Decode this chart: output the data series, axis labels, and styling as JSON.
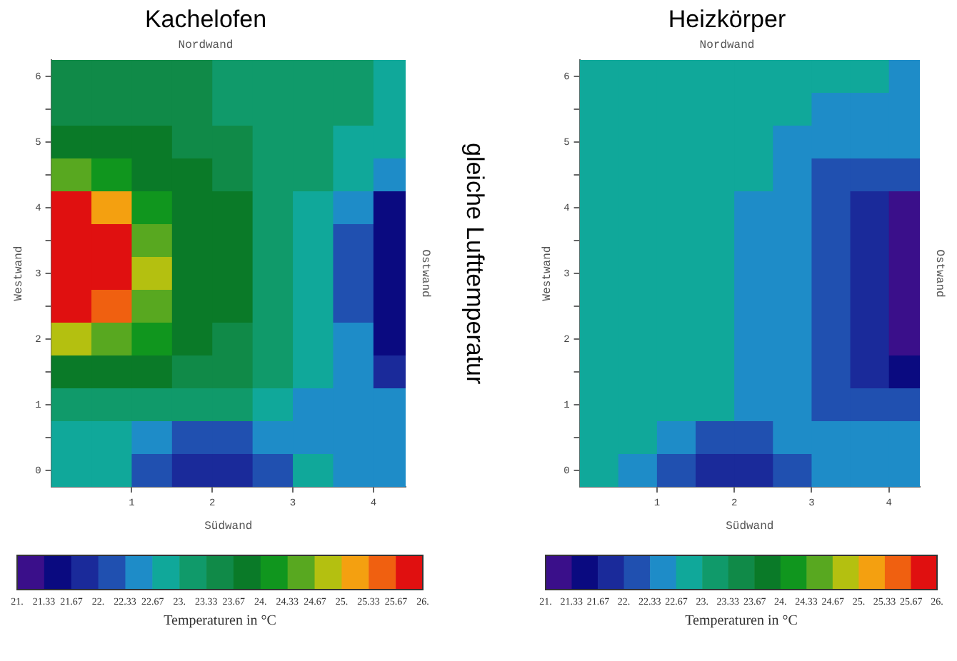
{
  "chart_data": [
    {
      "type": "heatmap",
      "title": "Kachelofen",
      "subtitle": "Nordwand",
      "xlabel": "Südwand",
      "ylabel": "Westwand",
      "y2label": "Ostwand",
      "clabel": "Temperaturen in °C",
      "annotations": [
        "gleiche Lufttemperatur"
      ],
      "x": [
        0.25,
        0.75,
        1.25,
        1.75,
        2.25,
        2.75,
        3.25,
        3.75,
        4.25
      ],
      "y_categories": [
        "6",
        null,
        "5",
        null,
        "4",
        null,
        "3",
        null,
        "2",
        null,
        "1",
        null,
        "0"
      ],
      "cells": [
        [
          23.5,
          23.5,
          23.5,
          23.5,
          23.17,
          23.17,
          23.17,
          23.17,
          22.83
        ],
        [
          23.5,
          23.5,
          23.5,
          23.5,
          23.17,
          23.17,
          23.17,
          23.17,
          22.83
        ],
        [
          23.83,
          23.83,
          23.83,
          23.5,
          23.5,
          23.17,
          23.17,
          22.83,
          22.83
        ],
        [
          24.5,
          24.17,
          23.83,
          23.83,
          23.5,
          23.17,
          23.17,
          22.83,
          22.5
        ],
        [
          25.83,
          25.17,
          24.17,
          23.83,
          23.83,
          23.17,
          22.83,
          22.5,
          21.5
        ],
        [
          25.83,
          25.83,
          24.5,
          23.83,
          23.83,
          23.17,
          22.83,
          22.17,
          21.5
        ],
        [
          25.83,
          25.83,
          24.83,
          23.83,
          23.83,
          23.17,
          22.83,
          22.17,
          21.5
        ],
        [
          25.83,
          25.5,
          24.5,
          23.83,
          23.83,
          23.17,
          22.83,
          22.17,
          21.5
        ],
        [
          24.83,
          24.5,
          24.17,
          23.83,
          23.5,
          23.17,
          22.83,
          22.5,
          21.5
        ],
        [
          23.83,
          23.83,
          23.83,
          23.5,
          23.5,
          23.17,
          22.83,
          22.5,
          21.83
        ],
        [
          23.17,
          23.17,
          23.17,
          23.17,
          23.17,
          22.83,
          22.5,
          22.5,
          22.5
        ],
        [
          22.83,
          22.83,
          22.5,
          22.17,
          22.17,
          22.5,
          22.5,
          22.5,
          22.5
        ],
        [
          22.83,
          22.83,
          22.17,
          21.83,
          21.83,
          22.17,
          22.83,
          22.5,
          22.5
        ]
      ],
      "colors": [
        "#3a0f8a",
        "#0a0a80",
        "#1a2a9a",
        "#2050b0",
        "#1e8cc8",
        "#10a89a",
        "#109a6a",
        "#108a48",
        "#0a7a28",
        "#10961e",
        "#58a820",
        "#b4c010",
        "#f4a010",
        "#f06010",
        "#e01010"
      ],
      "clim": [
        21,
        26
      ],
      "cticks": [
        {
          "value": 21,
          "label": "21."
        },
        21.33,
        21.67,
        {
          "value": 22,
          "label": "22."
        },
        22.33,
        22.67,
        {
          "value": 23,
          "label": "23."
        },
        23.33,
        23.67,
        {
          "value": 24,
          "label": "24."
        },
        24.33,
        24.67,
        {
          "value": 25,
          "label": "25."
        },
        25.33,
        25.67,
        {
          "value": 26,
          "label": "26."
        }
      ],
      "xlim": [
        0,
        4.4
      ],
      "xticks": [
        1,
        2,
        3,
        4
      ]
    },
    {
      "type": "heatmap",
      "title": "Heizkörper",
      "subtitle": "Nordwand",
      "xlabel": "Südwand",
      "ylabel": "Westwand",
      "y2label": "Ostwand",
      "clabel": "Temperaturen in °C",
      "x": [
        0.25,
        0.75,
        1.25,
        1.75,
        2.25,
        2.75,
        3.25,
        3.75,
        4.25
      ],
      "y_categories": [
        "6",
        null,
        "5",
        null,
        "4",
        null,
        "3",
        null,
        "2",
        null,
        "1",
        null,
        "0"
      ],
      "cells": [
        [
          22.83,
          22.83,
          22.83,
          22.83,
          22.83,
          22.83,
          22.83,
          22.83,
          22.5
        ],
        [
          22.83,
          22.83,
          22.83,
          22.83,
          22.83,
          22.83,
          22.5,
          22.5,
          22.5
        ],
        [
          22.83,
          22.83,
          22.83,
          22.83,
          22.83,
          22.5,
          22.5,
          22.5,
          22.5
        ],
        [
          22.83,
          22.83,
          22.83,
          22.83,
          22.83,
          22.5,
          22.17,
          22.17,
          22.17
        ],
        [
          22.83,
          22.83,
          22.83,
          22.83,
          22.5,
          22.5,
          22.17,
          21.83,
          21.17
        ],
        [
          22.83,
          22.83,
          22.83,
          22.83,
          22.5,
          22.5,
          22.17,
          21.83,
          21.17
        ],
        [
          22.83,
          22.83,
          22.83,
          22.83,
          22.5,
          22.5,
          22.17,
          21.83,
          21.17
        ],
        [
          22.83,
          22.83,
          22.83,
          22.83,
          22.5,
          22.5,
          22.17,
          21.83,
          21.17
        ],
        [
          22.83,
          22.83,
          22.83,
          22.83,
          22.5,
          22.5,
          22.17,
          21.83,
          21.17
        ],
        [
          22.83,
          22.83,
          22.83,
          22.83,
          22.5,
          22.5,
          22.17,
          21.83,
          21.5
        ],
        [
          22.83,
          22.83,
          22.83,
          22.83,
          22.5,
          22.5,
          22.17,
          22.17,
          22.17
        ],
        [
          22.83,
          22.83,
          22.5,
          22.17,
          22.17,
          22.5,
          22.5,
          22.5,
          22.5
        ],
        [
          22.83,
          22.5,
          22.17,
          21.83,
          21.83,
          22.17,
          22.5,
          22.5,
          22.5
        ]
      ],
      "colors": [
        "#3a0f8a",
        "#0a0a80",
        "#1a2a9a",
        "#2050b0",
        "#1e8cc8",
        "#10a89a",
        "#109a6a",
        "#108a48",
        "#0a7a28",
        "#10961e",
        "#58a820",
        "#b4c010",
        "#f4a010",
        "#f06010",
        "#e01010"
      ],
      "clim": [
        21,
        26
      ],
      "cticks": [
        {
          "value": 21,
          "label": "21."
        },
        21.33,
        21.67,
        {
          "value": 22,
          "label": "22."
        },
        22.33,
        22.67,
        {
          "value": 23,
          "label": "23."
        },
        23.33,
        23.67,
        {
          "value": 24,
          "label": "24."
        },
        24.33,
        24.67,
        {
          "value": 25,
          "label": "25."
        },
        25.33,
        25.67,
        {
          "value": 26,
          "label": "26."
        }
      ],
      "xlim": [
        0,
        4.4
      ],
      "xticks": [
        1,
        2,
        3,
        4
      ]
    }
  ]
}
